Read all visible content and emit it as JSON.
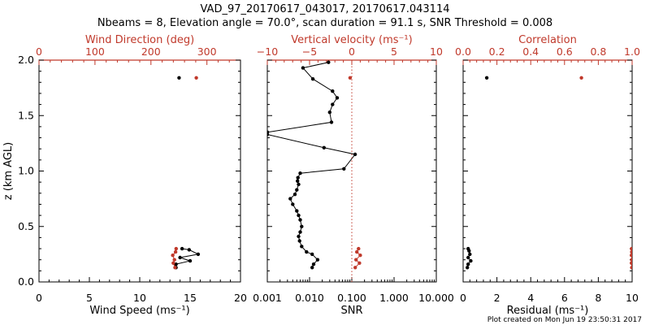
{
  "title_line1": "VAD_97_20170617_043017, 20170617.043114",
  "title_line2": "Nbeams = 8, Elevation angle = 70.0°, scan duration = 91.1 s, SNR Threshold = 0.008",
  "footer": "Plot created on Mon Jun 19 23:50:31 2017",
  "colors": {
    "axis": "#000000",
    "red": "#c0392b",
    "black_series": "#000000"
  },
  "chart_data": [
    {
      "type": "line",
      "panel": "left",
      "ylabel": "z (km AGL)",
      "ylim": [
        0.0,
        2.0
      ],
      "yticks": [
        "0.0",
        "0.5",
        "1.0",
        "1.5",
        "2.0"
      ],
      "bottom_axis": {
        "label": "Wind Speed (ms⁻¹)",
        "lim": [
          0,
          20
        ],
        "ticks": [
          "0",
          "5",
          "10",
          "15",
          "20"
        ]
      },
      "top_axis": {
        "label": "Wind Direction (deg)",
        "lim": [
          0,
          360
        ],
        "ticks": [
          "0",
          "100",
          "200",
          "300"
        ],
        "color": "red"
      },
      "series": [
        {
          "axis": "bottom",
          "color": "black",
          "style": "line",
          "x": [
            13.6,
            13.6,
            15.0,
            14.0,
            15.8,
            14.9,
            14.2
          ],
          "y": [
            0.13,
            0.16,
            0.19,
            0.22,
            0.25,
            0.29,
            0.3
          ]
        },
        {
          "axis": "bottom",
          "color": "black",
          "style": "points",
          "x": [
            13.9
          ],
          "y": [
            1.84
          ]
        },
        {
          "axis": "top",
          "color": "red",
          "style": "line",
          "x": [
            243,
            240,
            242,
            239,
            244,
            245
          ],
          "y": [
            0.13,
            0.17,
            0.2,
            0.24,
            0.27,
            0.3
          ]
        },
        {
          "axis": "top",
          "color": "red",
          "style": "points",
          "x": [
            281
          ],
          "y": [
            1.84
          ]
        }
      ]
    },
    {
      "type": "line",
      "panel": "middle",
      "bottom_axis": {
        "label": "SNR",
        "scale": "log",
        "lim": [
          0.001,
          10.0
        ],
        "ticks": [
          "0.001",
          "0.010",
          "0.100",
          "1.000",
          "10.000"
        ]
      },
      "top_axis": {
        "label": "Vertical velocity (ms⁻¹)",
        "lim": [
          -10,
          10
        ],
        "ticks": [
          "−10",
          "−5",
          "0",
          "5",
          "10"
        ],
        "color": "red"
      },
      "series": [
        {
          "axis": "bottom",
          "color": "black",
          "style": "line",
          "x": [
            0.0115,
            0.0125,
            0.0155,
            0.0115,
            0.0085,
            0.0065,
            0.0058,
            0.0055,
            0.006,
            0.0065,
            0.006,
            0.0055,
            0.005,
            0.004,
            0.0035,
            0.0045,
            0.005,
            0.0055,
            0.0052,
            0.0053,
            0.006,
            0.065,
            0.12,
            0.022,
            0.001,
            0.001,
            0.033,
            0.03,
            0.035,
            0.045,
            0.035,
            0.012,
            0.007,
            0.028
          ],
          "y": [
            0.13,
            0.16,
            0.2,
            0.25,
            0.27,
            0.32,
            0.37,
            0.41,
            0.45,
            0.5,
            0.56,
            0.6,
            0.64,
            0.7,
            0.75,
            0.79,
            0.83,
            0.88,
            0.91,
            0.94,
            0.98,
            1.02,
            1.15,
            1.21,
            1.33,
            1.35,
            1.44,
            1.53,
            1.6,
            1.66,
            1.72,
            1.83,
            1.93,
            1.98
          ]
        },
        {
          "axis": "top",
          "color": "red",
          "style": "line",
          "x": [
            0.4,
            0.9,
            0.5,
            1.0,
            0.6,
            0.8
          ],
          "y": [
            0.13,
            0.17,
            0.2,
            0.24,
            0.27,
            0.3
          ]
        },
        {
          "axis": "top",
          "color": "red",
          "style": "points",
          "x": [
            -0.2
          ],
          "y": [
            1.84
          ]
        },
        {
          "axis": "top",
          "color": "red",
          "style": "refline",
          "x": [
            0,
            0
          ],
          "y": [
            0,
            2
          ]
        }
      ]
    },
    {
      "type": "line",
      "panel": "right",
      "bottom_axis": {
        "label": "Residual (ms⁻¹)",
        "lim": [
          0,
          10
        ],
        "ticks": [
          "0",
          "2",
          "4",
          "6",
          "8",
          "10"
        ]
      },
      "top_axis": {
        "label": "Correlation",
        "lim": [
          0.0,
          1.0
        ],
        "ticks": [
          "0.0",
          "0.2",
          "0.4",
          "0.6",
          "0.8",
          "1.0"
        ],
        "color": "red"
      },
      "series": [
        {
          "axis": "bottom",
          "color": "black",
          "style": "line",
          "x": [
            0.25,
            0.3,
            0.45,
            0.3,
            0.4,
            0.35,
            0.3
          ],
          "y": [
            0.13,
            0.16,
            0.19,
            0.22,
            0.25,
            0.28,
            0.3
          ]
        },
        {
          "axis": "bottom",
          "color": "black",
          "style": "points",
          "x": [
            1.4
          ],
          "y": [
            1.84
          ]
        },
        {
          "axis": "top",
          "color": "red",
          "style": "line",
          "x": [
            0.998,
            0.996,
            0.998,
            0.996,
            0.998,
            0.997
          ],
          "y": [
            0.13,
            0.17,
            0.2,
            0.24,
            0.27,
            0.3
          ]
        },
        {
          "axis": "top",
          "color": "red",
          "style": "points",
          "x": [
            0.7
          ],
          "y": [
            1.84
          ]
        }
      ]
    }
  ]
}
